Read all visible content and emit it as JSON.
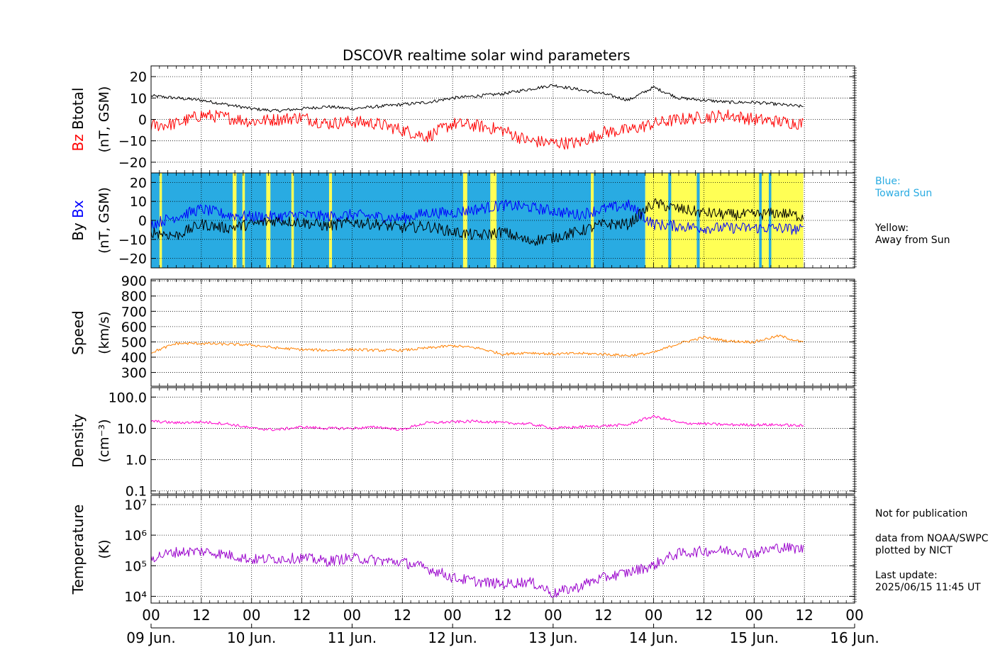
{
  "title": "DSCOVR realtime solar wind parameters",
  "legend_notes": {
    "blue": [
      "Blue:",
      "Toward Sun"
    ],
    "yellow": [
      "Yellow:",
      "Away from Sun"
    ]
  },
  "footer_notes": {
    "not_for_publication": "Not for publication",
    "data_from": "data from NOAA/SWPC",
    "plotted_by": "plotted by NICT",
    "last_update_label": "Last update:",
    "last_update_value": "2025/06/15 11:45 UT"
  },
  "colors": {
    "btotal": "#000000",
    "bz": "#ff0000",
    "bx": "#0000ff",
    "by": "#000000",
    "speed": "#ff8000",
    "density": "#ff00cc",
    "temperature": "#9900cc",
    "toward_sun": "#29abe2",
    "away_from_sun": "#ffff55"
  },
  "chart_data": [
    {
      "type": "line",
      "panel": "magnetic-field-z",
      "ylabel_parts": [
        "Bz",
        "Btotal"
      ],
      "ylabel_unit": "(nT, GSM)",
      "ylim": [
        -25,
        25
      ],
      "yticks": [
        "20",
        "10",
        "0",
        "−10",
        "−20"
      ],
      "ytick_values": [
        20,
        10,
        0,
        -10,
        -20
      ],
      "x": [
        0,
        6,
        12,
        18,
        24,
        30,
        36,
        42,
        48,
        54,
        60,
        66,
        72,
        78,
        84,
        90,
        96,
        102,
        108,
        114,
        120,
        126,
        132,
        138,
        144,
        150,
        155.75
      ],
      "series": [
        {
          "name": "Btotal",
          "values": [
            11,
            10,
            9,
            7,
            5,
            4,
            5,
            6,
            5,
            6,
            7,
            8,
            10,
            11,
            12,
            14,
            16,
            14,
            12,
            9,
            15,
            10,
            9,
            8,
            8,
            7,
            6
          ]
        },
        {
          "name": "Bz",
          "values": [
            -3,
            -2,
            2,
            1,
            -1,
            0,
            1,
            -2,
            -1,
            -2,
            -5,
            -8,
            -2,
            -3,
            -5,
            -10,
            -11,
            -11,
            -6,
            -5,
            -2,
            0,
            1,
            2,
            0,
            -1,
            -2
          ]
        }
      ]
    },
    {
      "type": "line",
      "panel": "magnetic-field-xy",
      "ylabel_parts": [
        "By",
        "Bx"
      ],
      "ylabel_unit": "(nT, GSM)",
      "ylim": [
        -25,
        25
      ],
      "yticks": [
        "20",
        "10",
        "0",
        "−10",
        "−20"
      ],
      "ytick_values": [
        20,
        10,
        0,
        -10,
        -20
      ],
      "x": [
        0,
        6,
        12,
        18,
        24,
        30,
        36,
        42,
        48,
        54,
        60,
        66,
        72,
        78,
        84,
        90,
        96,
        102,
        108,
        114,
        120,
        126,
        132,
        138,
        144,
        150,
        155.75
      ],
      "series": [
        {
          "name": "Bx",
          "values": [
            -2,
            2,
            6,
            3,
            2,
            2,
            3,
            2,
            3,
            2,
            1,
            4,
            4,
            6,
            8,
            7,
            5,
            3,
            6,
            8,
            -2,
            -3,
            -4,
            -4,
            -4,
            -4,
            -5
          ]
        },
        {
          "name": "By",
          "values": [
            -6,
            -8,
            -2,
            -4,
            -2,
            0,
            -1,
            -3,
            -1,
            -2,
            -4,
            -3,
            -6,
            -8,
            -6,
            -11,
            -9,
            -6,
            -2,
            -2,
            9,
            6,
            4,
            3,
            3,
            4,
            2
          ]
        }
      ],
      "background_segments_hours": [
        {
          "polarity": "toward",
          "start": 0,
          "end": 118
        },
        {
          "polarity": "away",
          "start": 118,
          "end": 155.75
        },
        {
          "polarity": "away",
          "start": 2,
          "end": 2.6
        },
        {
          "polarity": "away",
          "start": 19.5,
          "end": 20.4
        },
        {
          "polarity": "away",
          "start": 21.8,
          "end": 22.4
        },
        {
          "polarity": "away",
          "start": 27.5,
          "end": 28.5
        },
        {
          "polarity": "away",
          "start": 33.5,
          "end": 34.1
        },
        {
          "polarity": "away",
          "start": 42.5,
          "end": 43.2
        },
        {
          "polarity": "away",
          "start": 74.5,
          "end": 75.5
        },
        {
          "polarity": "away",
          "start": 81,
          "end": 82.5
        },
        {
          "polarity": "away",
          "start": 105,
          "end": 105.7
        },
        {
          "polarity": "toward",
          "start": 123.5,
          "end": 124.2
        },
        {
          "polarity": "toward",
          "start": 130.3,
          "end": 131
        },
        {
          "polarity": "toward",
          "start": 145.2,
          "end": 145.8
        },
        {
          "polarity": "toward",
          "start": 147.5,
          "end": 148.1
        }
      ]
    },
    {
      "type": "line",
      "panel": "speed",
      "ylabel_parts": [
        "Speed"
      ],
      "ylabel_unit": "(km/s)",
      "ylim": [
        210,
        910
      ],
      "yticks": [
        "900",
        "800",
        "700",
        "600",
        "500",
        "400",
        "300"
      ],
      "ytick_values": [
        900,
        800,
        700,
        600,
        500,
        400,
        300
      ],
      "x": [
        0,
        6,
        12,
        18,
        24,
        30,
        36,
        42,
        48,
        54,
        60,
        66,
        72,
        78,
        84,
        90,
        96,
        102,
        108,
        114,
        120,
        126,
        132,
        138,
        144,
        150,
        155.75
      ],
      "series": [
        {
          "name": "Speed",
          "values": [
            430,
            490,
            490,
            485,
            480,
            460,
            450,
            445,
            450,
            445,
            445,
            460,
            475,
            460,
            420,
            430,
            420,
            425,
            420,
            410,
            430,
            490,
            530,
            505,
            500,
            540,
            495
          ]
        }
      ]
    },
    {
      "type": "line",
      "panel": "density",
      "ylabel_parts": [
        "Density"
      ],
      "ylabel_unit": "(cm⁻³)",
      "log_scale": true,
      "ylim": [
        0.08,
        200
      ],
      "yticks": [
        "100.0",
        "10.0",
        "1.0",
        "0.1"
      ],
      "ytick_values": [
        100,
        10,
        1,
        0.1
      ],
      "x": [
        0,
        6,
        12,
        18,
        24,
        30,
        36,
        42,
        48,
        54,
        60,
        66,
        72,
        78,
        84,
        90,
        96,
        102,
        108,
        114,
        120,
        126,
        132,
        138,
        144,
        150,
        155.75
      ],
      "series": [
        {
          "name": "Density",
          "values": [
            17,
            15,
            16,
            14,
            10,
            9,
            11,
            10,
            10,
            11,
            9,
            15,
            16,
            17,
            15,
            14,
            10,
            11,
            12,
            13,
            24,
            15,
            14,
            13,
            13,
            13,
            12
          ]
        }
      ]
    },
    {
      "type": "line",
      "panel": "temperature",
      "ylabel_parts": [
        "Temperature"
      ],
      "ylabel_unit": "(K)",
      "log_scale": true,
      "ylim": [
        6000,
        20000000
      ],
      "yticks": [
        "10⁷",
        "10⁶",
        "10⁵",
        "10⁴"
      ],
      "ytick_values": [
        10000000,
        1000000,
        100000,
        10000
      ],
      "x": [
        0,
        6,
        12,
        18,
        24,
        30,
        36,
        42,
        48,
        54,
        60,
        66,
        72,
        78,
        84,
        90,
        96,
        102,
        108,
        114,
        120,
        126,
        132,
        138,
        144,
        150,
        155.75
      ],
      "series": [
        {
          "name": "Temperature",
          "values": [
            180000,
            280000,
            300000,
            230000,
            160000,
            170000,
            180000,
            140000,
            180000,
            150000,
            130000,
            80000,
            40000,
            30000,
            25000,
            30000,
            12000,
            20000,
            40000,
            60000,
            100000,
            250000,
            300000,
            320000,
            250000,
            400000,
            350000
          ]
        }
      ]
    }
  ],
  "x_axis": {
    "hour_labels": [
      "00",
      "12",
      "00",
      "12",
      "00",
      "12",
      "00",
      "12",
      "00",
      "12",
      "00",
      "12",
      "00",
      "12",
      "00"
    ],
    "day_labels": [
      "09 Jun.",
      "10 Jun.",
      "11 Jun.",
      "12 Jun.",
      "13 Jun.",
      "14 Jun.",
      "15 Jun.",
      "16 Jun."
    ],
    "range_hours": [
      0,
      168
    ]
  }
}
